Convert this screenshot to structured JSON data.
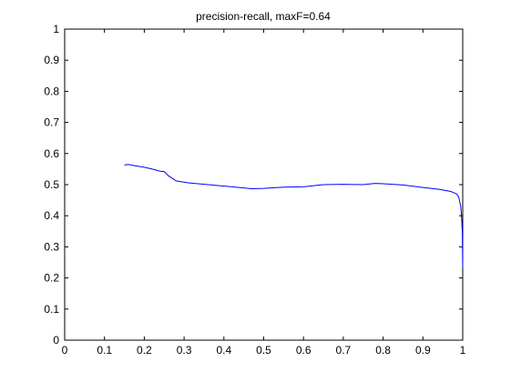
{
  "chart_data": {
    "type": "line",
    "title": "precision-recall, maxF=0.64",
    "xlabel": "",
    "ylabel": "",
    "xlim": [
      0,
      1
    ],
    "ylim": [
      0,
      1
    ],
    "x_ticks": [
      "0",
      "0.1",
      "0.2",
      "0.3",
      "0.4",
      "0.5",
      "0.6",
      "0.7",
      "0.8",
      "0.9",
      "1"
    ],
    "y_ticks": [
      "0",
      "0.1",
      "0.2",
      "0.3",
      "0.4",
      "0.5",
      "0.6",
      "0.7",
      "0.8",
      "0.9",
      "1"
    ],
    "grid": false,
    "legend": "none",
    "series": [
      {
        "color": "#0000ff",
        "x": [
          0.15,
          0.16,
          0.17,
          0.2,
          0.22,
          0.24,
          0.25,
          0.26,
          0.28,
          0.31,
          0.36,
          0.42,
          0.47,
          0.5,
          0.55,
          0.6,
          0.65,
          0.7,
          0.75,
          0.78,
          0.8,
          0.85,
          0.9,
          0.94,
          0.97,
          0.985,
          0.99,
          0.995,
          0.997,
          0.999,
          1.0
        ],
        "y": [
          0.563,
          0.565,
          0.562,
          0.556,
          0.55,
          0.543,
          0.542,
          0.529,
          0.512,
          0.506,
          0.5,
          0.493,
          0.487,
          0.488,
          0.492,
          0.493,
          0.5,
          0.501,
          0.5,
          0.504,
          0.503,
          0.499,
          0.491,
          0.485,
          0.478,
          0.47,
          0.46,
          0.43,
          0.4,
          0.35,
          0.235
        ]
      }
    ]
  }
}
